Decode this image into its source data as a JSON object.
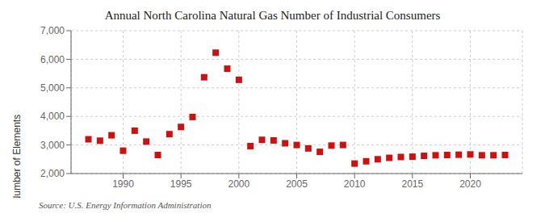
{
  "chart_data": {
    "type": "scatter",
    "title": "Annual North Carolina Natural Gas Number of Industrial Consumers",
    "y_label": "Number of Elements",
    "source": "Source: U.S. Energy Information Administration",
    "x": [
      1987,
      1988,
      1989,
      1990,
      1991,
      1992,
      1993,
      1994,
      1995,
      1996,
      1997,
      1998,
      1999,
      2000,
      2001,
      2002,
      2003,
      2004,
      2005,
      2006,
      2007,
      2008,
      2009,
      2010,
      2011,
      2012,
      2013,
      2014,
      2015,
      2016,
      2017,
      2018,
      2019,
      2020,
      2021,
      2022,
      2023
    ],
    "values": [
      3200,
      3150,
      3340,
      2800,
      3500,
      3120,
      2650,
      3380,
      3630,
      3980,
      5370,
      6230,
      5670,
      5280,
      2960,
      3180,
      3160,
      3060,
      3000,
      2880,
      2760,
      2980,
      3000,
      2350,
      2430,
      2500,
      2550,
      2580,
      2590,
      2620,
      2640,
      2650,
      2660,
      2670,
      2640,
      2640,
      2650
    ],
    "color": "#cc1111",
    "marker": "square",
    "xlim": [
      1985.5,
      2024.5
    ],
    "ylim": [
      2000,
      7000
    ],
    "xticks": [
      1990,
      1995,
      2000,
      2005,
      2010,
      2015,
      2020
    ],
    "yticks": [
      {
        "value": 2000,
        "label": "2,000"
      },
      {
        "value": 3000,
        "label": "3,000"
      },
      {
        "value": 4000,
        "label": "4,000"
      },
      {
        "value": 5000,
        "label": "5,000"
      },
      {
        "value": 6000,
        "label": "6,000"
      },
      {
        "value": 7000,
        "label": "7,000"
      }
    ],
    "grid": true
  }
}
